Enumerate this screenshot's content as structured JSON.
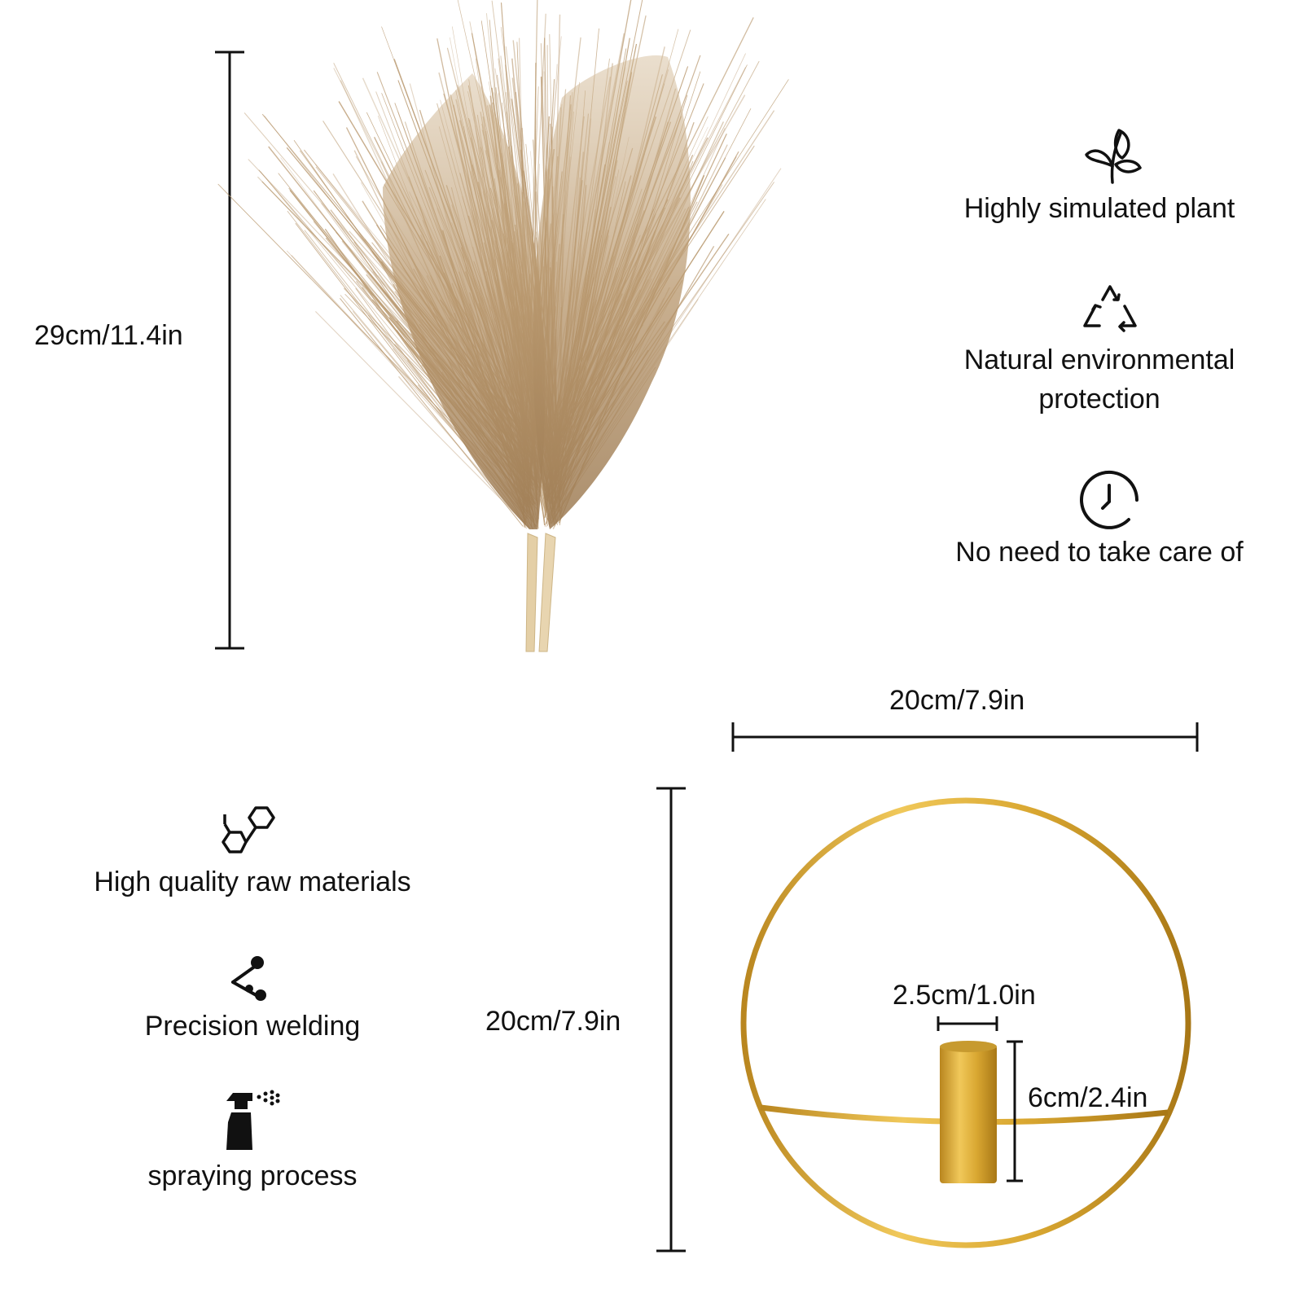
{
  "dimensions": {
    "plant_height": "29cm/11.4in",
    "holder_width": "20cm/7.9in",
    "holder_height": "20cm/7.9in",
    "cup_diameter": "2.5cm/1.0in",
    "cup_height": "6cm/2.4in"
  },
  "features_right": [
    {
      "icon": "leaf-icon",
      "label": "Highly simulated plant"
    },
    {
      "icon": "recycle-icon",
      "label_line1": "Natural environmental",
      "label_line2": "protection"
    },
    {
      "icon": "clock-icon",
      "label": "No need to take care of"
    }
  ],
  "features_left": [
    {
      "icon": "hexagon-molecule-icon",
      "label": "High quality raw materials"
    },
    {
      "icon": "welding-icon",
      "label": "Precision welding"
    },
    {
      "icon": "spray-bottle-icon",
      "label": "spraying process"
    }
  ],
  "colors": {
    "plume": "#b8976d",
    "plume_light": "#cbb08a",
    "stem": "#e4cfa6",
    "gold": "#d9a731",
    "gold_dark": "#b3811c",
    "line": "#111111"
  }
}
